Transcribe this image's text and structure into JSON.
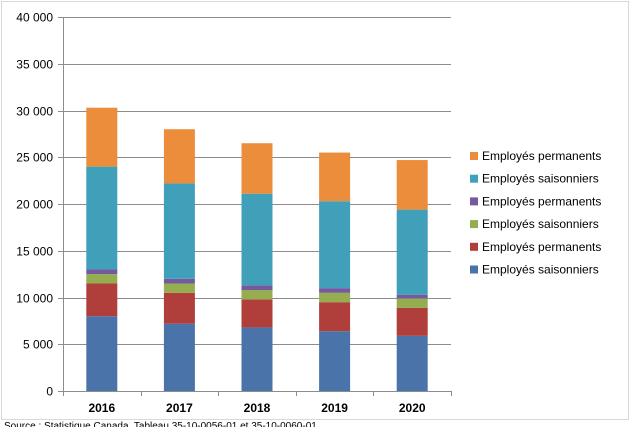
{
  "chart_data": {
    "type": "bar",
    "stacked": true,
    "categories": [
      "2016",
      "2017",
      "2018",
      "2019",
      "2020"
    ],
    "ylim": [
      0,
      40000
    ],
    "yticks": [
      0,
      5000,
      10000,
      15000,
      20000,
      25000,
      30000,
      35000,
      40000
    ],
    "ytick_labels": [
      "0",
      "5 000",
      "10 000",
      "15 000",
      "20 000",
      "25 000",
      "30 000",
      "35 000",
      "40 000"
    ],
    "grid": true,
    "legend_position": "right",
    "series": [
      {
        "name": "Employés saisonniers",
        "color": "#4a74a9",
        "values": [
          8000,
          7200,
          6800,
          6400,
          5900
        ]
      },
      {
        "name": "Employés permanents",
        "color": "#b03e3b",
        "values": [
          3500,
          3300,
          3000,
          3100,
          3000
        ]
      },
      {
        "name": "Employés saisonniers",
        "color": "#94ad4f",
        "values": [
          1000,
          1000,
          1000,
          1000,
          1000
        ]
      },
      {
        "name": "Employés permanents",
        "color": "#7559a0",
        "values": [
          500,
          500,
          500,
          500,
          400
        ]
      },
      {
        "name": "Employés saisonniers",
        "color": "#41a0b9",
        "values": [
          11000,
          10200,
          9800,
          9300,
          9100
        ]
      },
      {
        "name": "Employés permanents",
        "color": "#ec8d3c",
        "values": [
          6300,
          5800,
          5400,
          5200,
          5300
        ]
      }
    ]
  },
  "footer": {
    "source": "Source : Statistique Canada. Tableau 35-10-0056-01 et 35-10-0060-01"
  }
}
